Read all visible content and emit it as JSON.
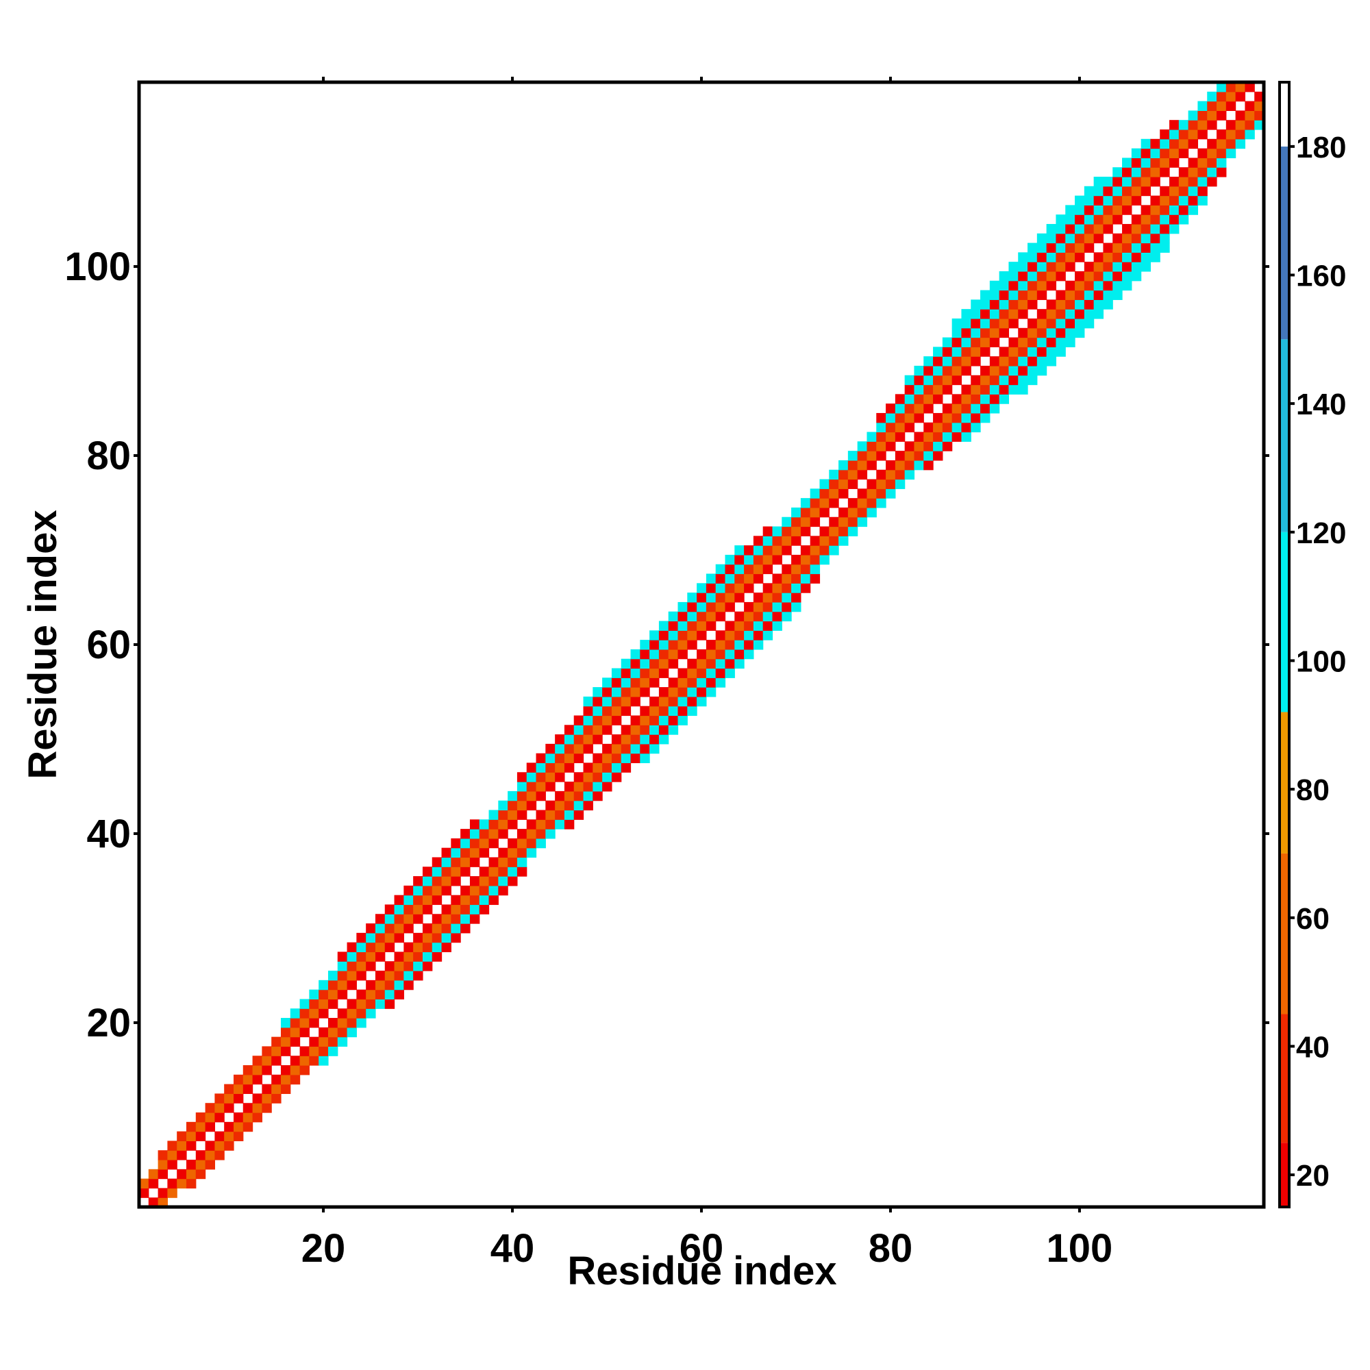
{
  "chart_data": {
    "type": "heatmap",
    "title": "",
    "xlabel": "Residue index",
    "ylabel": "Residue index",
    "xlim": [
      1,
      119
    ],
    "ylim": [
      1,
      119
    ],
    "x_ticks": [
      20,
      40,
      60,
      80,
      100
    ],
    "y_ticks": [
      20,
      40,
      60,
      80,
      100
    ],
    "colorbar": {
      "range": [
        15,
        190
      ],
      "ticks": [
        20,
        40,
        60,
        80,
        100,
        120,
        140,
        160,
        180
      ],
      "bands": [
        {
          "from": 15,
          "to": 25,
          "color": "#ee0000"
        },
        {
          "from": 25,
          "to": 45,
          "color": "#ee2a00"
        },
        {
          "from": 45,
          "to": 70,
          "color": "#ee6600"
        },
        {
          "from": 70,
          "to": 92,
          "color": "#ee9900"
        },
        {
          "from": 92,
          "to": 120,
          "color": "#00eeee"
        },
        {
          "from": 120,
          "to": 150,
          "color": "#22bbdd"
        },
        {
          "from": 150,
          "to": 180,
          "color": "#4477bb"
        },
        {
          "from": 180,
          "to": 190,
          "color": "#ffffff"
        }
      ]
    },
    "pattern": "symmetric distance-like map with values on a band around the diagonal",
    "band_halfwidth": [
      [
        1,
        2
      ],
      [
        8,
        3
      ],
      [
        14,
        3
      ],
      [
        22,
        4
      ],
      [
        28,
        5
      ],
      [
        36,
        5
      ],
      [
        42,
        4
      ],
      [
        46,
        5
      ],
      [
        56,
        6
      ],
      [
        66,
        6
      ],
      [
        72,
        4
      ],
      [
        80,
        4
      ],
      [
        86,
        6
      ],
      [
        96,
        7
      ],
      [
        104,
        7
      ],
      [
        112,
        5
      ],
      [
        119,
        3
      ]
    ],
    "band_colors": {
      "0": "#ffffff",
      "1": "#ee0000",
      "2": "#ee6600",
      "3": "#ee2a00",
      "4": "#00eeee",
      "5": "#ee0000",
      "6": "#00eeee",
      "7": "#00eeee"
    }
  }
}
